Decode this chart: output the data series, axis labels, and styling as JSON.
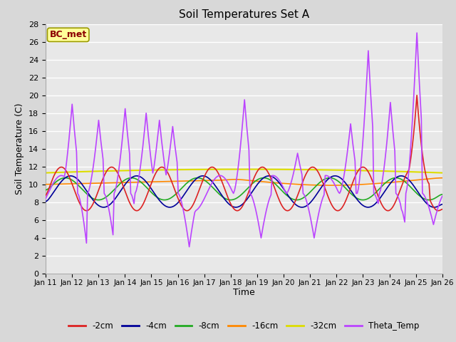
{
  "title": "Soil Temperatures Set A",
  "xlabel": "Time",
  "ylabel": "Soil Temperature (C)",
  "ylim": [
    0,
    28
  ],
  "yticks": [
    0,
    2,
    4,
    6,
    8,
    10,
    12,
    14,
    16,
    18,
    20,
    22,
    24,
    26,
    28
  ],
  "x_labels": [
    "Jan 11",
    "Jan 12",
    "Jan 13",
    "Jan 14",
    "Jan 15",
    "Jan 16",
    "Jan 17",
    "Jan 18",
    "Jan 19",
    "Jan 20",
    "Jan 21",
    "Jan 22",
    "Jan 23",
    "Jan 24",
    "Jan 25",
    "Jan 26"
  ],
  "series": {
    "-2cm": {
      "color": "#dd2222",
      "lw": 1.2
    },
    "-4cm": {
      "color": "#000099",
      "lw": 1.2
    },
    "-8cm": {
      "color": "#22aa22",
      "lw": 1.2
    },
    "-16cm": {
      "color": "#ff8800",
      "lw": 1.2
    },
    "-32cm": {
      "color": "#dddd00",
      "lw": 1.5
    },
    "Theta_Temp": {
      "color": "#bb44ff",
      "lw": 1.2
    }
  },
  "legend_label": "BC_met",
  "fig_bg": "#d8d8d8",
  "plot_bg": "#e8e8e8",
  "grid_color": "#ffffff"
}
